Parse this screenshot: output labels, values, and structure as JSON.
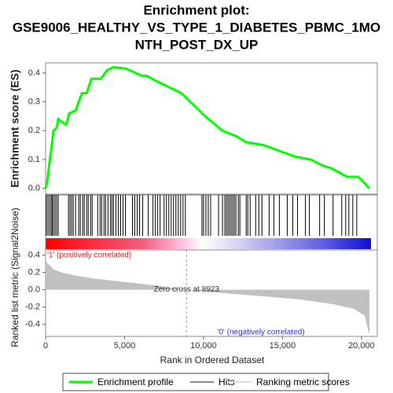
{
  "chart_data": [
    {
      "type": "line",
      "title": [
        "Enrichment plot:",
        "GSE9006_HEALTHY_VS_TYPE_1_DIABETES_PBMC_1MO",
        "NTH_POST_DX_UP"
      ],
      "ylabel": "Enrichment score (ES)",
      "xlim": [
        0,
        21000
      ],
      "ylim": [
        -0.02,
        0.435
      ],
      "yticks": [
        {
          "value": 0,
          "label": "0.0"
        },
        0.1,
        0.2,
        0.3,
        0.4
      ],
      "series": [
        {
          "name": "Enrichment profile",
          "color": "#00ff00",
          "x": [
            0,
            100,
            250,
            350,
            500,
            700,
            800,
            1300,
            1500,
            1900,
            2300,
            2600,
            2900,
            3500,
            3900,
            4300,
            5100,
            6100,
            6400,
            7100,
            8600,
            10100,
            11200,
            12100,
            12700,
            13800,
            15800,
            16800,
            17500,
            18100,
            19100,
            19800,
            20500
          ],
          "values": [
            0,
            0.02,
            0.09,
            0.13,
            0.2,
            0.21,
            0.24,
            0.22,
            0.26,
            0.27,
            0.33,
            0.33,
            0.38,
            0.38,
            0.41,
            0.42,
            0.415,
            0.39,
            0.39,
            0.37,
            0.33,
            0.25,
            0.2,
            0.18,
            0.16,
            0.15,
            0.11,
            0.1,
            0.08,
            0.07,
            0.04,
            0.04,
            0
          ]
        }
      ]
    },
    {
      "type": "hits",
      "xlim": [
        0,
        21000
      ],
      "annotations": [
        "'1' (positively correlated)"
      ],
      "series": [
        {
          "name": "Hits",
          "color": "#000000",
          "values": [
            50,
            150,
            250,
            350,
            420,
            500,
            600,
            700,
            800,
            1450,
            1550,
            1650,
            1750,
            1900,
            2100,
            2200,
            2350,
            2450,
            2600,
            2700,
            2850,
            2950,
            3300,
            3450,
            3550,
            3700,
            3800,
            3950,
            4100,
            4200,
            4300,
            4450,
            4600,
            4750,
            4900,
            5050,
            5500,
            5650,
            5800,
            5950,
            6150,
            6500,
            6800,
            6950,
            7100,
            7250,
            7500,
            7650,
            7800,
            7950,
            8100,
            8250,
            8400,
            8550,
            8700,
            8850,
            9900,
            10000,
            10150,
            10300,
            10450,
            10950,
            11200,
            11350,
            11450,
            11550,
            11650,
            11750,
            11850,
            11950,
            12050,
            12200,
            12300,
            12700,
            12800,
            12950,
            13300,
            13500,
            13700,
            14150,
            14450,
            14800,
            15300,
            15650,
            15950,
            16450,
            16700,
            17350,
            17650,
            18200,
            18750,
            19000,
            19200,
            19450,
            19700
          ]
        }
      ]
    },
    {
      "type": "area",
      "xlabel": "Rank in Ordered Dataset",
      "ylabel": "Ranked list metric (Signal2Noise)",
      "annotations": [
        "Zero cross at 8923",
        "'0' (negatively correlated)"
      ],
      "zero_cross": 8923,
      "xlim": [
        0,
        21000
      ],
      "ylim": [
        -0.54,
        0.46
      ],
      "xticks": [
        0,
        {
          "value": 5000,
          "label": "5,000"
        },
        {
          "value": 10000,
          "label": "10,000"
        },
        {
          "value": 15000,
          "label": "15,000"
        },
        {
          "value": 20000,
          "label": "20,000"
        }
      ],
      "yticks": [
        -0.4,
        -0.2,
        {
          "value": 0,
          "label": "0.0"
        },
        0.2,
        0.4
      ],
      "series": [
        {
          "name": "Ranking metric scores",
          "color": "#c0c0c0",
          "x": [
            0,
            50,
            500,
            1000,
            2000,
            3000,
            4000,
            5000,
            6000,
            7000,
            8000,
            8923,
            10000,
            12000,
            14000,
            16000,
            18000,
            19500,
            20200,
            20400,
            20500
          ],
          "values": [
            0.45,
            0.32,
            0.24,
            0.2,
            0.16,
            0.13,
            0.11,
            0.09,
            0.07,
            0.05,
            0.02,
            0,
            -0.02,
            -0.05,
            -0.08,
            -0.11,
            -0.16,
            -0.22,
            -0.3,
            -0.45,
            -0.52
          ]
        }
      ]
    }
  ]
}
